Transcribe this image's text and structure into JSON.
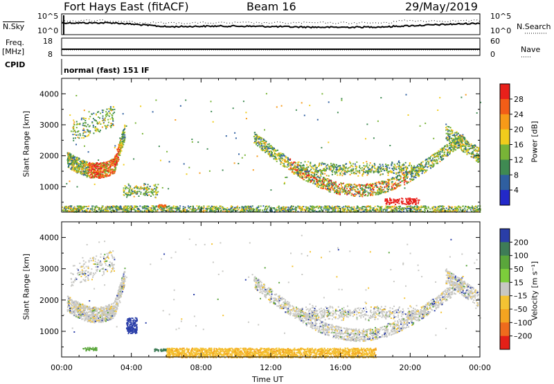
{
  "header": {
    "station": "Fort Hays East (fitACF)",
    "beam": "Beam 16",
    "date": "29/May/2019"
  },
  "aux_panels": {
    "nsky_label": "N.Sky",
    "nsearch_label": "N.Search",
    "freq_label_top": "Freq.",
    "freq_label_unit": "[MHz]",
    "nave_label": "Nave",
    "cpid_label": "CPID",
    "cpid_text": "normal (fast) 151 IF",
    "noise_ticks": [
      "10^5",
      "10^0"
    ],
    "freq_ticks": [
      "18",
      "8"
    ],
    "nave_ticks": [
      "60",
      "0"
    ]
  },
  "power_colorbar": {
    "label": "Power [dB]",
    "ticks": [
      "28",
      "24",
      "20",
      "16",
      "12",
      "8",
      "4"
    ],
    "colors": [
      "#e8201b",
      "#f25d17",
      "#f79a18",
      "#f0cc1c",
      "#78b437",
      "#3f8a52",
      "#2f5fa0",
      "#2329c9"
    ]
  },
  "velocity_colorbar": {
    "label": "Velocity [m s⁻¹]",
    "ticks": [
      "200",
      "100",
      "50",
      "15",
      "-15",
      "-50",
      "-100",
      "-200"
    ],
    "colors": [
      "#2a3ea8",
      "#3e7c57",
      "#5aa63b",
      "#7ccd3b",
      "#c8c8c4",
      "#f4c333",
      "#f4a420",
      "#ef6b1d",
      "#e32018"
    ]
  },
  "chart_data": [
    {
      "type": "heatmap",
      "title": "",
      "xlabel": "",
      "ylabel": "Slant Range [km]",
      "xlim": [
        "00:00",
        "00:00"
      ],
      "ylim": [
        180,
        4500
      ],
      "x_ticks": [
        "00:00",
        "04:00",
        "08:00",
        "12:00",
        "16:00",
        "20:00",
        "00:00"
      ],
      "y_ticks": [
        4000,
        3000,
        2000,
        1000
      ],
      "colorbar": "Power [dB]",
      "regions": [
        {
          "time_start": "00:15",
          "time_end": "03:45",
          "range_min_km": 1400,
          "range_max_km": 2600,
          "power_db_peak": 28
        },
        {
          "time_start": "03:30",
          "time_end": "06:00",
          "range_min_km": 700,
          "range_max_km": 1200,
          "power_db_peak": 16
        },
        {
          "time_start": "11:00",
          "time_end": "23:30",
          "range_min_km": 400,
          "range_max_km": 2700,
          "power_db_peak": 28
        },
        {
          "time_start": "00:00",
          "time_end": "24:00",
          "range_min_km": 180,
          "range_max_km": 400,
          "power_db_peak": 12
        }
      ]
    },
    {
      "type": "heatmap",
      "title": "",
      "xlabel": "Time UT",
      "ylabel": "Slant Range [km]",
      "xlim": [
        "00:00",
        "00:00"
      ],
      "ylim": [
        180,
        4500
      ],
      "x_ticks": [
        "00:00",
        "04:00",
        "08:00",
        "12:00",
        "16:00",
        "20:00",
        "00:00"
      ],
      "y_ticks": [
        4000,
        3000,
        2000,
        1000
      ],
      "colorbar": "Velocity [m s-1]",
      "regions": [
        {
          "time_start": "00:15",
          "time_end": "03:45",
          "range_min_km": 1400,
          "range_max_km": 2600,
          "velocity_ms": 0
        },
        {
          "time_start": "03:30",
          "time_end": "04:30",
          "range_min_km": 900,
          "range_max_km": 1700,
          "velocity_ms": 200
        },
        {
          "time_start": "11:00",
          "time_end": "23:30",
          "range_min_km": 400,
          "range_max_km": 2700,
          "velocity_ms": 0
        },
        {
          "time_start": "08:00",
          "time_end": "18:00",
          "range_min_km": 180,
          "range_max_km": 600,
          "velocity_ms": -50
        }
      ]
    }
  ]
}
